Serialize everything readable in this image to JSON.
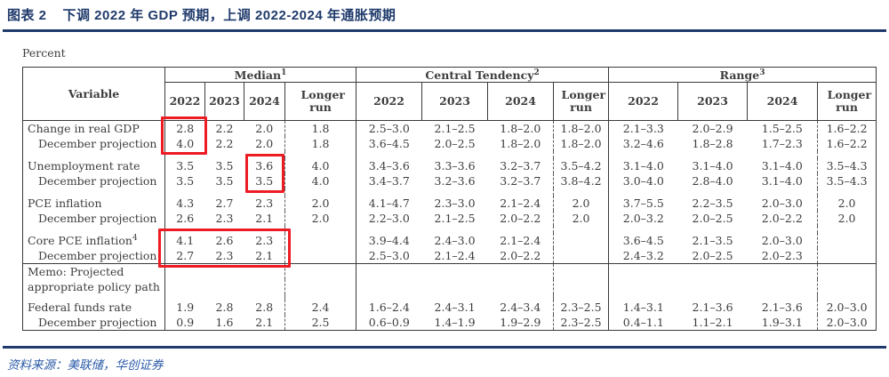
{
  "header": {
    "tag": "图表 2",
    "title": "下调 2022 年 GDP 预期，上调 2022-2024 年通胀预期"
  },
  "unit_label": "Percent",
  "source": "资料来源：美联储，华创证券",
  "colors": {
    "accent_navy": "#1f3a6b",
    "source_blue": "#2b5ba8",
    "highlight_red": "#ed1c24",
    "table_text": "#3d3d3d"
  },
  "table": {
    "variable_header": "Variable",
    "groups": [
      {
        "label": "Median",
        "sup": "1"
      },
      {
        "label": "Central Tendency",
        "sup": "2"
      },
      {
        "label": "Range",
        "sup": "3"
      }
    ],
    "years": [
      "2022",
      "2023",
      "2024",
      "Longer run"
    ],
    "rows": [
      {
        "type": "data",
        "label": "Change in real GDP",
        "indent": false,
        "sup": "",
        "values": [
          "2.8",
          "2.2",
          "2.0",
          "1.8",
          "2.5–3.0",
          "2.1–2.5",
          "1.8–2.0",
          "1.8–2.0",
          "2.1–3.3",
          "2.0–2.9",
          "1.5–2.5",
          "1.6–2.2"
        ]
      },
      {
        "type": "data",
        "label": "December projection",
        "indent": true,
        "sup": "",
        "values": [
          "4.0",
          "2.2",
          "2.0",
          "1.8",
          "3.6–4.5",
          "2.0–2.5",
          "1.8–2.0",
          "1.8–2.0",
          "3.2–4.6",
          "1.8–2.8",
          "1.7–2.3",
          "1.6–2.2"
        ]
      },
      {
        "type": "spacer"
      },
      {
        "type": "data",
        "label": "Unemployment rate",
        "indent": false,
        "sup": "",
        "values": [
          "3.5",
          "3.5",
          "3.6",
          "4.0",
          "3.4–3.6",
          "3.3–3.6",
          "3.2–3.7",
          "3.5–4.2",
          "3.1–4.0",
          "3.1–4.0",
          "3.1–4.0",
          "3.5–4.3"
        ]
      },
      {
        "type": "data",
        "label": "December projection",
        "indent": true,
        "sup": "",
        "values": [
          "3.5",
          "3.5",
          "3.5",
          "4.0",
          "3.4–3.7",
          "3.2–3.6",
          "3.2–3.7",
          "3.8–4.2",
          "3.0–4.0",
          "2.8–4.0",
          "3.1–4.0",
          "3.5–4.3"
        ]
      },
      {
        "type": "spacer"
      },
      {
        "type": "data",
        "label": "PCE inflation",
        "indent": false,
        "sup": "",
        "values": [
          "4.3",
          "2.7",
          "2.3",
          "2.0",
          "4.1–4.7",
          "2.3–3.0",
          "2.1–2.4",
          "2.0",
          "3.7–5.5",
          "2.2–3.5",
          "2.0–3.0",
          "2.0"
        ]
      },
      {
        "type": "data",
        "label": "December projection",
        "indent": true,
        "sup": "",
        "values": [
          "2.6",
          "2.3",
          "2.1",
          "2.0",
          "2.2–3.0",
          "2.1–2.5",
          "2.0–2.2",
          "2.0",
          "2.0–3.2",
          "2.0–2.5",
          "2.0–2.2",
          "2.0"
        ]
      },
      {
        "type": "spacer"
      },
      {
        "type": "data",
        "label": "Core PCE inflation",
        "indent": false,
        "sup": "4",
        "values": [
          "4.1",
          "2.6",
          "2.3",
          "",
          "3.9–4.4",
          "2.4–3.0",
          "2.1–2.4",
          "",
          "3.6–4.5",
          "2.1–3.5",
          "2.0–3.0",
          ""
        ]
      },
      {
        "type": "data",
        "label": "December projection",
        "indent": true,
        "sup": "",
        "values": [
          "2.7",
          "2.3",
          "2.1",
          "",
          "2.5–3.0",
          "2.1–2.4",
          "2.0–2.2",
          "",
          "2.4–3.2",
          "2.0–2.5",
          "2.0–2.3",
          ""
        ]
      },
      {
        "type": "data",
        "label": "Memo: Projected",
        "indent": false,
        "sup": "",
        "rule_above": true,
        "values": [
          "",
          "",
          "",
          "",
          "",
          "",
          "",
          "",
          "",
          "",
          "",
          ""
        ]
      },
      {
        "type": "data",
        "label": "appropriate policy path",
        "indent": false,
        "sup": "",
        "values": [
          "",
          "",
          "",
          "",
          "",
          "",
          "",
          "",
          "",
          "",
          "",
          ""
        ]
      },
      {
        "type": "spacer",
        "small": true
      },
      {
        "type": "data",
        "label": "Federal funds rate",
        "indent": false,
        "sup": "",
        "values": [
          "1.9",
          "2.8",
          "2.8",
          "2.4",
          "1.6–2.4",
          "2.4–3.1",
          "2.4–3.4",
          "2.3–2.5",
          "1.4–3.1",
          "2.1–3.6",
          "2.1–3.6",
          "2.0–3.0"
        ]
      },
      {
        "type": "data",
        "label": "December projection",
        "indent": true,
        "sup": "",
        "values": [
          "0.9",
          "1.6",
          "2.1",
          "2.5",
          "0.6–0.9",
          "1.4–1.9",
          "1.9–2.9",
          "2.3–2.5",
          "0.4–1.1",
          "1.1–2.1",
          "1.9–3.1",
          "2.0–3.0"
        ]
      }
    ]
  }
}
